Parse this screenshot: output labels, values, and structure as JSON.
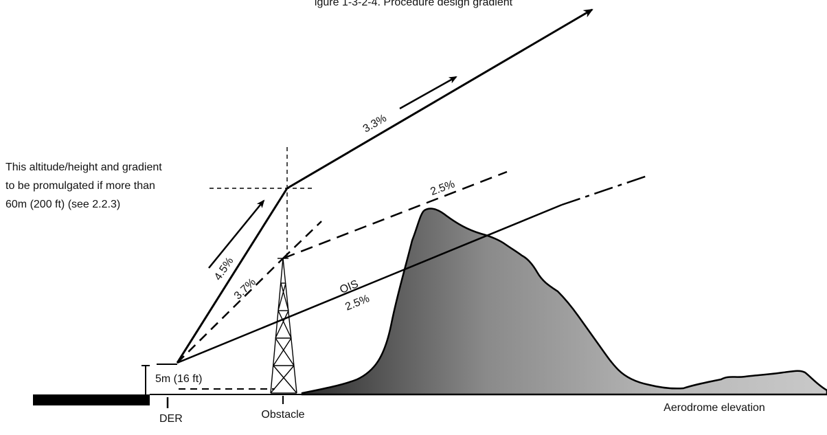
{
  "header": {
    "title_partial": "igure 1-3-2-4. Procedure design gradient"
  },
  "annotation_promulgate": [
    "This altitude/height and gradient",
    "to be promulgated if more than",
    "60m (200 ft) (see 2.2.3)"
  ],
  "labels": {
    "gradient_climb_final": "3.3%",
    "gradient_climb_initial": "4.5%",
    "gradient_obstacle": "3.7%",
    "gradient_upper_dashed": "2.5%",
    "ois_name": "OIS",
    "ois_gradient": "2.5%",
    "height_above_der": "5m (16 ft)",
    "der": "DER",
    "obstacle": "Obstacle",
    "aerodrome_elevation": "Aerodrome elevation"
  },
  "colors": {
    "line": "#000000",
    "terrain_dark": "#3c3c3c",
    "terrain_light": "#c9c9c9",
    "runway": "#000000"
  }
}
